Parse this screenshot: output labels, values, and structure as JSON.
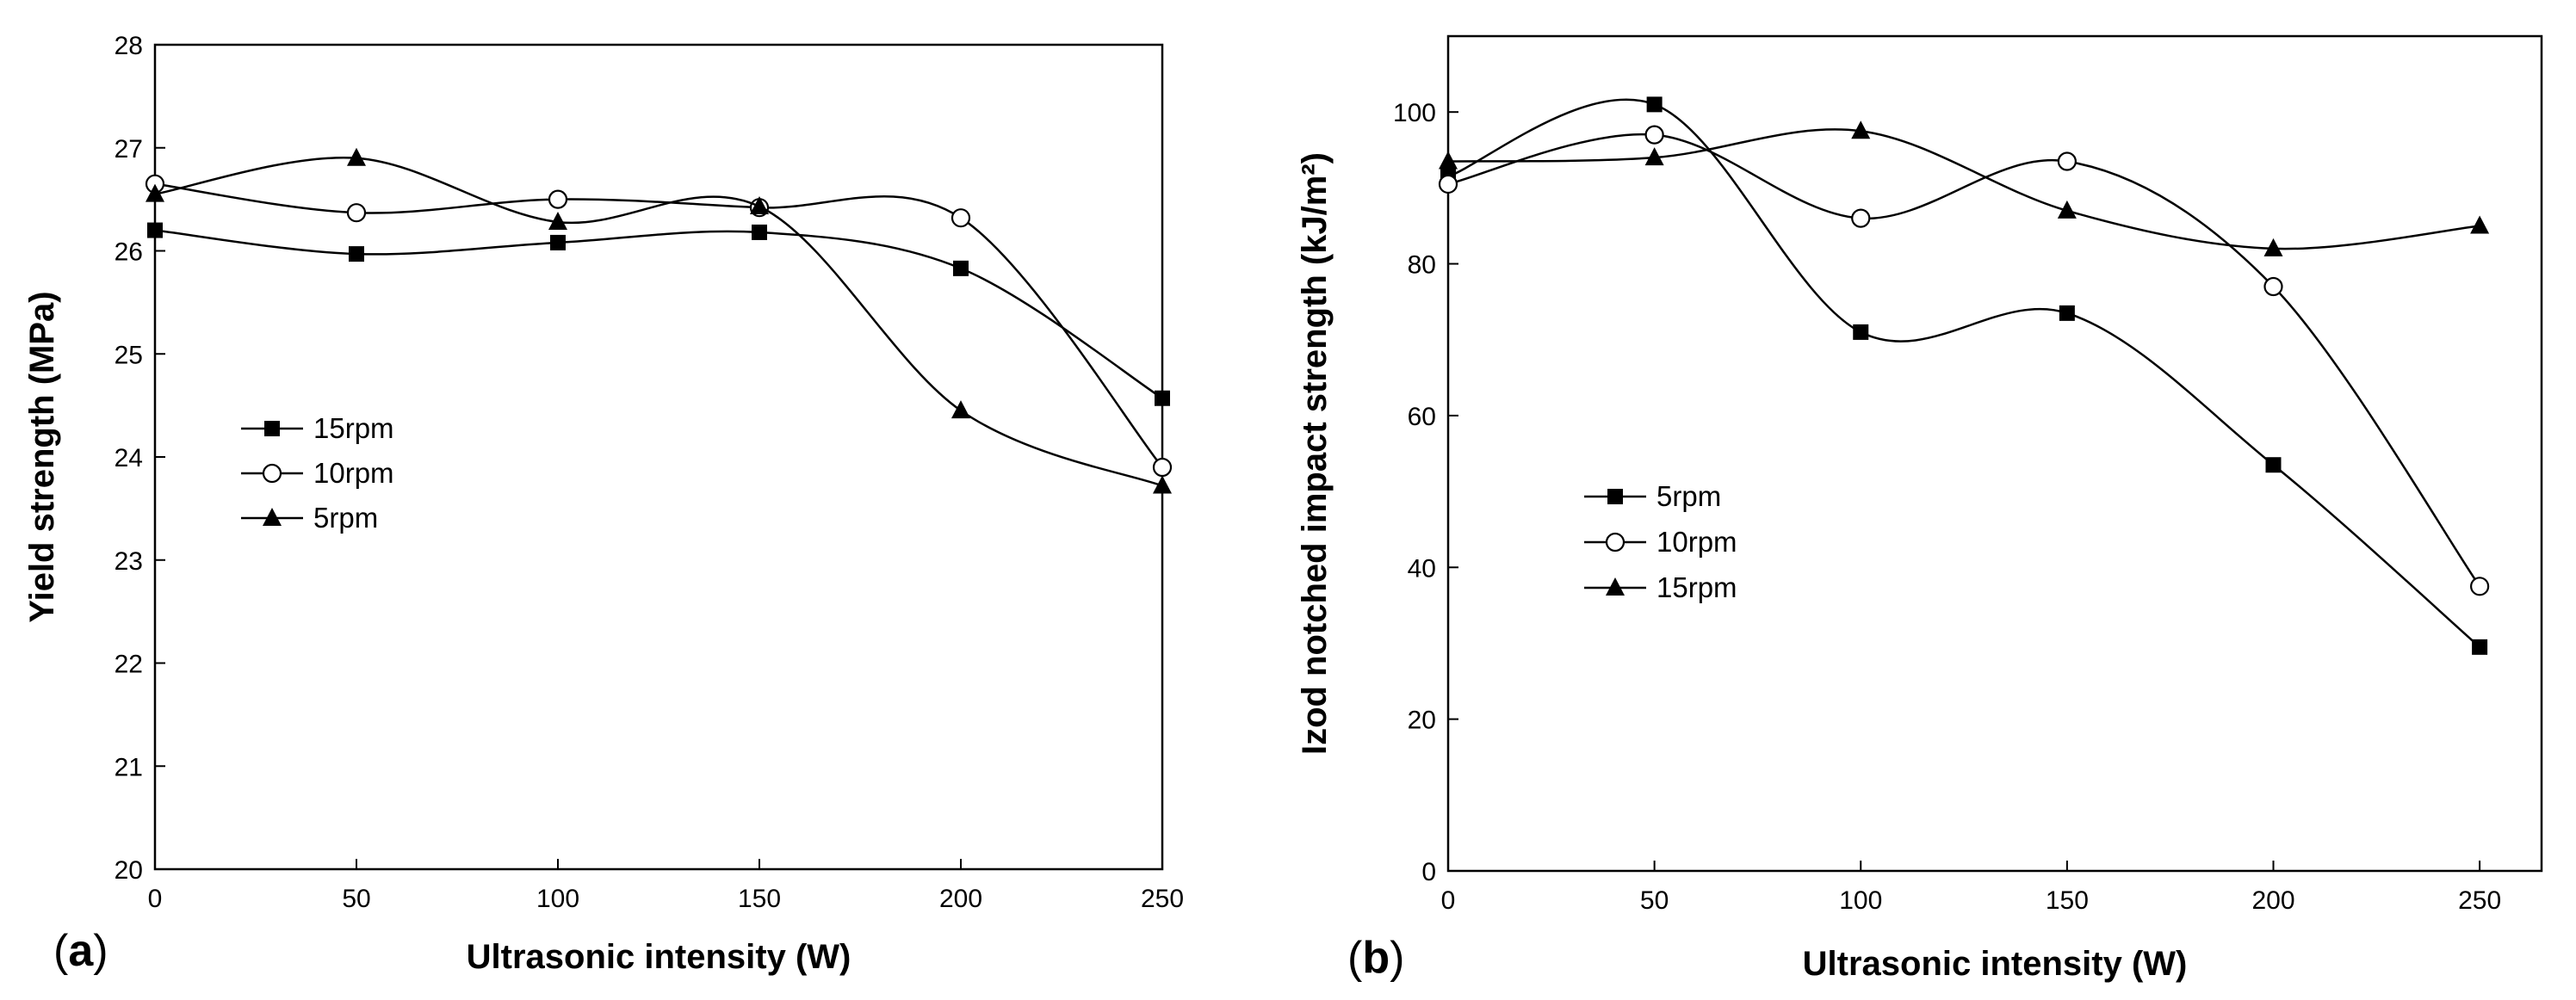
{
  "chart_data": [
    {
      "type": "scatter",
      "panel_label": "(a)",
      "xlabel": "Ultrasonic intensity (W)",
      "ylabel": "Yield strength (MPa)",
      "xlim": [
        0,
        250
      ],
      "ylim": [
        20,
        28
      ],
      "x_ticks": [
        0,
        50,
        100,
        150,
        200,
        250
      ],
      "y_ticks": [
        20,
        21,
        22,
        23,
        24,
        25,
        26,
        27,
        28
      ],
      "grid": false,
      "legend_placement": "middle-left",
      "x": [
        0,
        50,
        100,
        150,
        200,
        250
      ],
      "series": [
        {
          "name": "15rpm",
          "marker": "square-filled",
          "values": [
            26.2,
            25.97,
            26.08,
            26.18,
            25.83,
            24.57
          ]
        },
        {
          "name": "10rpm",
          "marker": "circle-open",
          "values": [
            26.65,
            26.37,
            26.5,
            26.42,
            26.32,
            23.9
          ]
        },
        {
          "name": "5rpm",
          "marker": "triangle-filled",
          "values": [
            26.55,
            26.9,
            26.28,
            26.43,
            24.45,
            23.72
          ]
        }
      ]
    },
    {
      "type": "scatter",
      "panel_label": "(b)",
      "xlabel": "Ultrasonic intensity (W)",
      "ylabel": "Izod notched impact strength (kJ/m²)",
      "xlim": [
        0,
        265
      ],
      "ylim": [
        0,
        110
      ],
      "x_ticks": [
        0,
        50,
        100,
        150,
        200,
        250
      ],
      "y_ticks": [
        0,
        20,
        40,
        60,
        80,
        100
      ],
      "grid": false,
      "legend_placement": "middle-left",
      "x": [
        0,
        50,
        100,
        150,
        200,
        250
      ],
      "series": [
        {
          "name": "5rpm",
          "marker": "square-filled",
          "values": [
            91.5,
            101,
            71,
            73.5,
            53.5,
            29.5
          ]
        },
        {
          "name": "10rpm",
          "marker": "circle-open",
          "values": [
            90.5,
            97,
            86,
            93.5,
            77,
            37.5
          ]
        },
        {
          "name": "15rpm",
          "marker": "triangle-filled",
          "values": [
            93.5,
            94,
            97.5,
            87,
            82,
            85
          ]
        }
      ]
    }
  ]
}
